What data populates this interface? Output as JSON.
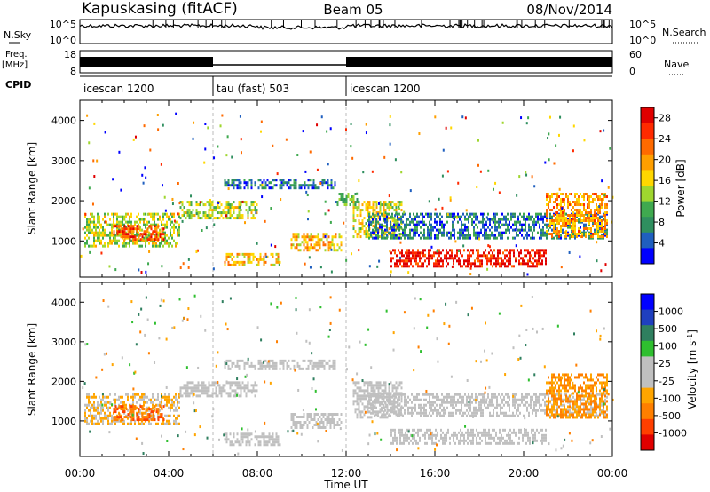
{
  "header": {
    "station": "Kapuskasing (fitACF)",
    "beam": "Beam 05",
    "date": "08/Nov/2014"
  },
  "panels": {
    "nsky": {
      "left_label": "N.Sky",
      "left_ticks": [
        "10^5",
        "10^0"
      ],
      "right_label": "N.Search",
      "right_ticks": [
        "10^5",
        "10^0"
      ]
    },
    "freq": {
      "left_label_1": "Freq.",
      "left_label_2": "[MHz]",
      "left_ticks": [
        "18",
        "8"
      ],
      "right_label": "Nave",
      "right_ticks": [
        "60",
        "0"
      ]
    },
    "cpid": {
      "label": "CPID",
      "segments": [
        {
          "start": "00:00",
          "end": "06:00",
          "label": "icescan 1200"
        },
        {
          "start": "06:00",
          "end": "12:00",
          "label": "tau (fast) 503"
        },
        {
          "start": "12:00",
          "end": "24:00",
          "label": "icescan 1200"
        }
      ]
    }
  },
  "colors": {
    "power": [
      "#0000ff",
      "#1f5fbf",
      "#2f8f5f",
      "#3fa94f",
      "#9fd62f",
      "#ffd700",
      "#ff9f00",
      "#ff6a00",
      "#ff2a00",
      "#e00000"
    ],
    "velocity": [
      "#0000ff",
      "#1f3fbf",
      "#2f7f5f",
      "#2fbf2f",
      "#c0c0c0",
      "#c0c0c0",
      "#ffa500",
      "#ff7f00",
      "#ff3f00",
      "#e00000"
    ],
    "ground_scatter": "#c0c0c0"
  },
  "chart_data": [
    {
      "type": "heatmap",
      "name": "power",
      "ylabel": "Slant Range [km]",
      "yticks": [
        "1000",
        "2000",
        "3000",
        "4000"
      ],
      "ylim": [
        100,
        4500
      ],
      "xlim": [
        0,
        24
      ],
      "colorbar_label": "Power [dB]",
      "colorbar_ticks": [
        "4",
        "8",
        "12",
        "16",
        "20",
        "24",
        "28"
      ],
      "colorbar_range": [
        0,
        30
      ],
      "bands": [
        {
          "t0": 0.2,
          "t1": 4.5,
          "r0": 900,
          "r1": 1700,
          "v": 14
        },
        {
          "t0": 1.5,
          "t1": 3.8,
          "r0": 1050,
          "r1": 1400,
          "v": 24
        },
        {
          "t0": 4.5,
          "t1": 8.0,
          "r0": 1600,
          "r1": 2000,
          "v": 14
        },
        {
          "t0": 6.5,
          "t1": 11.5,
          "r0": 2300,
          "r1": 2550,
          "v": 5
        },
        {
          "t0": 11.5,
          "t1": 12.5,
          "r0": 1900,
          "r1": 2200,
          "v": 10
        },
        {
          "t0": 12.3,
          "t1": 14.5,
          "r0": 1100,
          "r1": 2000,
          "v": 16
        },
        {
          "t0": 13.0,
          "t1": 23.8,
          "r0": 1100,
          "r1": 1700,
          "v": 6
        },
        {
          "t0": 14.0,
          "t1": 21.0,
          "r0": 400,
          "r1": 800,
          "v": 28
        },
        {
          "t0": 21.0,
          "t1": 23.8,
          "r0": 1100,
          "r1": 2200,
          "v": 20
        },
        {
          "t0": 6.5,
          "t1": 9.0,
          "r0": 400,
          "r1": 700,
          "v": 18
        },
        {
          "t0": 9.5,
          "t1": 11.8,
          "r0": 800,
          "r1": 1200,
          "v": 18
        }
      ]
    },
    {
      "type": "heatmap",
      "name": "velocity",
      "xlabel": "Time UT",
      "xticks": [
        "00:00",
        "04:00",
        "08:00",
        "12:00",
        "16:00",
        "20:00",
        "00:00"
      ],
      "ylabel": "Slant Range [km]",
      "yticks": [
        "1000",
        "2000",
        "3000",
        "4000"
      ],
      "ylim": [
        100,
        4500
      ],
      "xlim": [
        0,
        24
      ],
      "colorbar_label": "Velocity [m s^-1]",
      "colorbar_ticks": [
        "1000",
        "500",
        "100",
        "25",
        "-25",
        "-100",
        "-500",
        "-1000"
      ],
      "colorbar_range": [
        -1000,
        1000
      ],
      "bands": [
        {
          "t0": 0.2,
          "t1": 4.5,
          "r0": 900,
          "r1": 1700,
          "v": -200
        },
        {
          "t0": 1.5,
          "t1": 3.8,
          "r0": 1050,
          "r1": 1400,
          "v": -600
        },
        {
          "t0": 4.5,
          "t1": 8.0,
          "r0": 1600,
          "r1": 2000,
          "v": 0
        },
        {
          "t0": 6.5,
          "t1": 11.5,
          "r0": 2300,
          "r1": 2550,
          "v": 0
        },
        {
          "t0": 12.3,
          "t1": 14.5,
          "r0": 1100,
          "r1": 2000,
          "v": 0
        },
        {
          "t0": 13.0,
          "t1": 23.8,
          "r0": 1100,
          "r1": 1700,
          "v": 0
        },
        {
          "t0": 14.0,
          "t1": 21.0,
          "r0": 400,
          "r1": 800,
          "v": 0
        },
        {
          "t0": 21.0,
          "t1": 23.8,
          "r0": 1100,
          "r1": 2200,
          "v": -400
        },
        {
          "t0": 6.5,
          "t1": 9.0,
          "r0": 400,
          "r1": 700,
          "v": 0
        },
        {
          "t0": 9.5,
          "t1": 11.8,
          "r0": 800,
          "r1": 1200,
          "v": 0
        }
      ]
    }
  ]
}
